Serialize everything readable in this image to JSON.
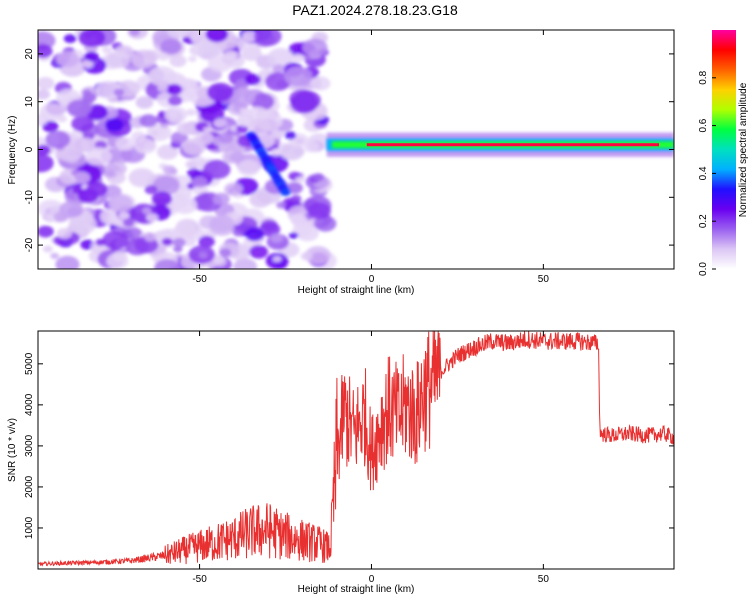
{
  "title": "PAZ1.2024.278.18.23.G18",
  "colors": {
    "signal_line": "#e83030",
    "background": "#ffffff",
    "colormap": [
      "#ffffff",
      "#dcc6f5",
      "#9a60f0",
      "#6a00f0",
      "#2010ff",
      "#00b0ff",
      "#00e0c0",
      "#00ff40",
      "#b0ff00",
      "#ffd000",
      "#ff6000",
      "#ff0000",
      "#ff00a0"
    ]
  },
  "chart_data": [
    {
      "type": "heatmap",
      "xlabel": "Height of straight line (km)",
      "ylabel": "Frequency (Hz)",
      "xlim": [
        -97,
        88
      ],
      "ylim": [
        -25,
        25
      ],
      "xticks": [
        -50,
        0,
        50
      ],
      "yticks": [
        -20,
        -10,
        0,
        10,
        20
      ],
      "colorbar": {
        "label": "Normalized spectral amplitude",
        "range": [
          0,
          1
        ],
        "ticks": [
          0.0,
          0.2,
          0.4,
          0.6,
          0.8
        ]
      },
      "features": {
        "noise_region_x": [
          -97,
          -13
        ],
        "chirp_from": [
          -35,
          3
        ],
        "chirp_to": [
          -25,
          -9
        ],
        "tone_frequency_hz": 1,
        "tone_region_x": [
          -13,
          88
        ],
        "tone_peak_amplitude": 0.95
      }
    },
    {
      "type": "line",
      "xlabel": "Height of straight line (km)",
      "ylabel": "SNR (10 * v/v)",
      "xlim": [
        -97,
        88
      ],
      "ylim": [
        0,
        5800
      ],
      "xticks": [
        -50,
        0,
        50
      ],
      "yticks": [
        1000,
        2000,
        3000,
        4000,
        5000
      ],
      "series": [
        {
          "x": [
            -97,
            -90,
            -80,
            -70,
            -60,
            -55,
            -50,
            -45,
            -40,
            -35,
            -30,
            -25,
            -20,
            -15,
            -12,
            -10,
            -8,
            -5,
            -2,
            0,
            3,
            5,
            8,
            10,
            13,
            15,
            18,
            20,
            25,
            30,
            35,
            40,
            45,
            50,
            55,
            60,
            66,
            66.5,
            70,
            75,
            80,
            85,
            88
          ],
          "y": [
            120,
            140,
            160,
            200,
            330,
            450,
            550,
            650,
            750,
            900,
            950,
            800,
            700,
            600,
            500,
            2800,
            3800,
            3300,
            3800,
            2800,
            3600,
            3900,
            3700,
            4000,
            3700,
            4300,
            4500,
            4800,
            5200,
            5400,
            5550,
            5500,
            5600,
            5550,
            5550,
            5550,
            5500,
            3300,
            3250,
            3300,
            3250,
            3300,
            3200
          ]
        }
      ]
    }
  ]
}
